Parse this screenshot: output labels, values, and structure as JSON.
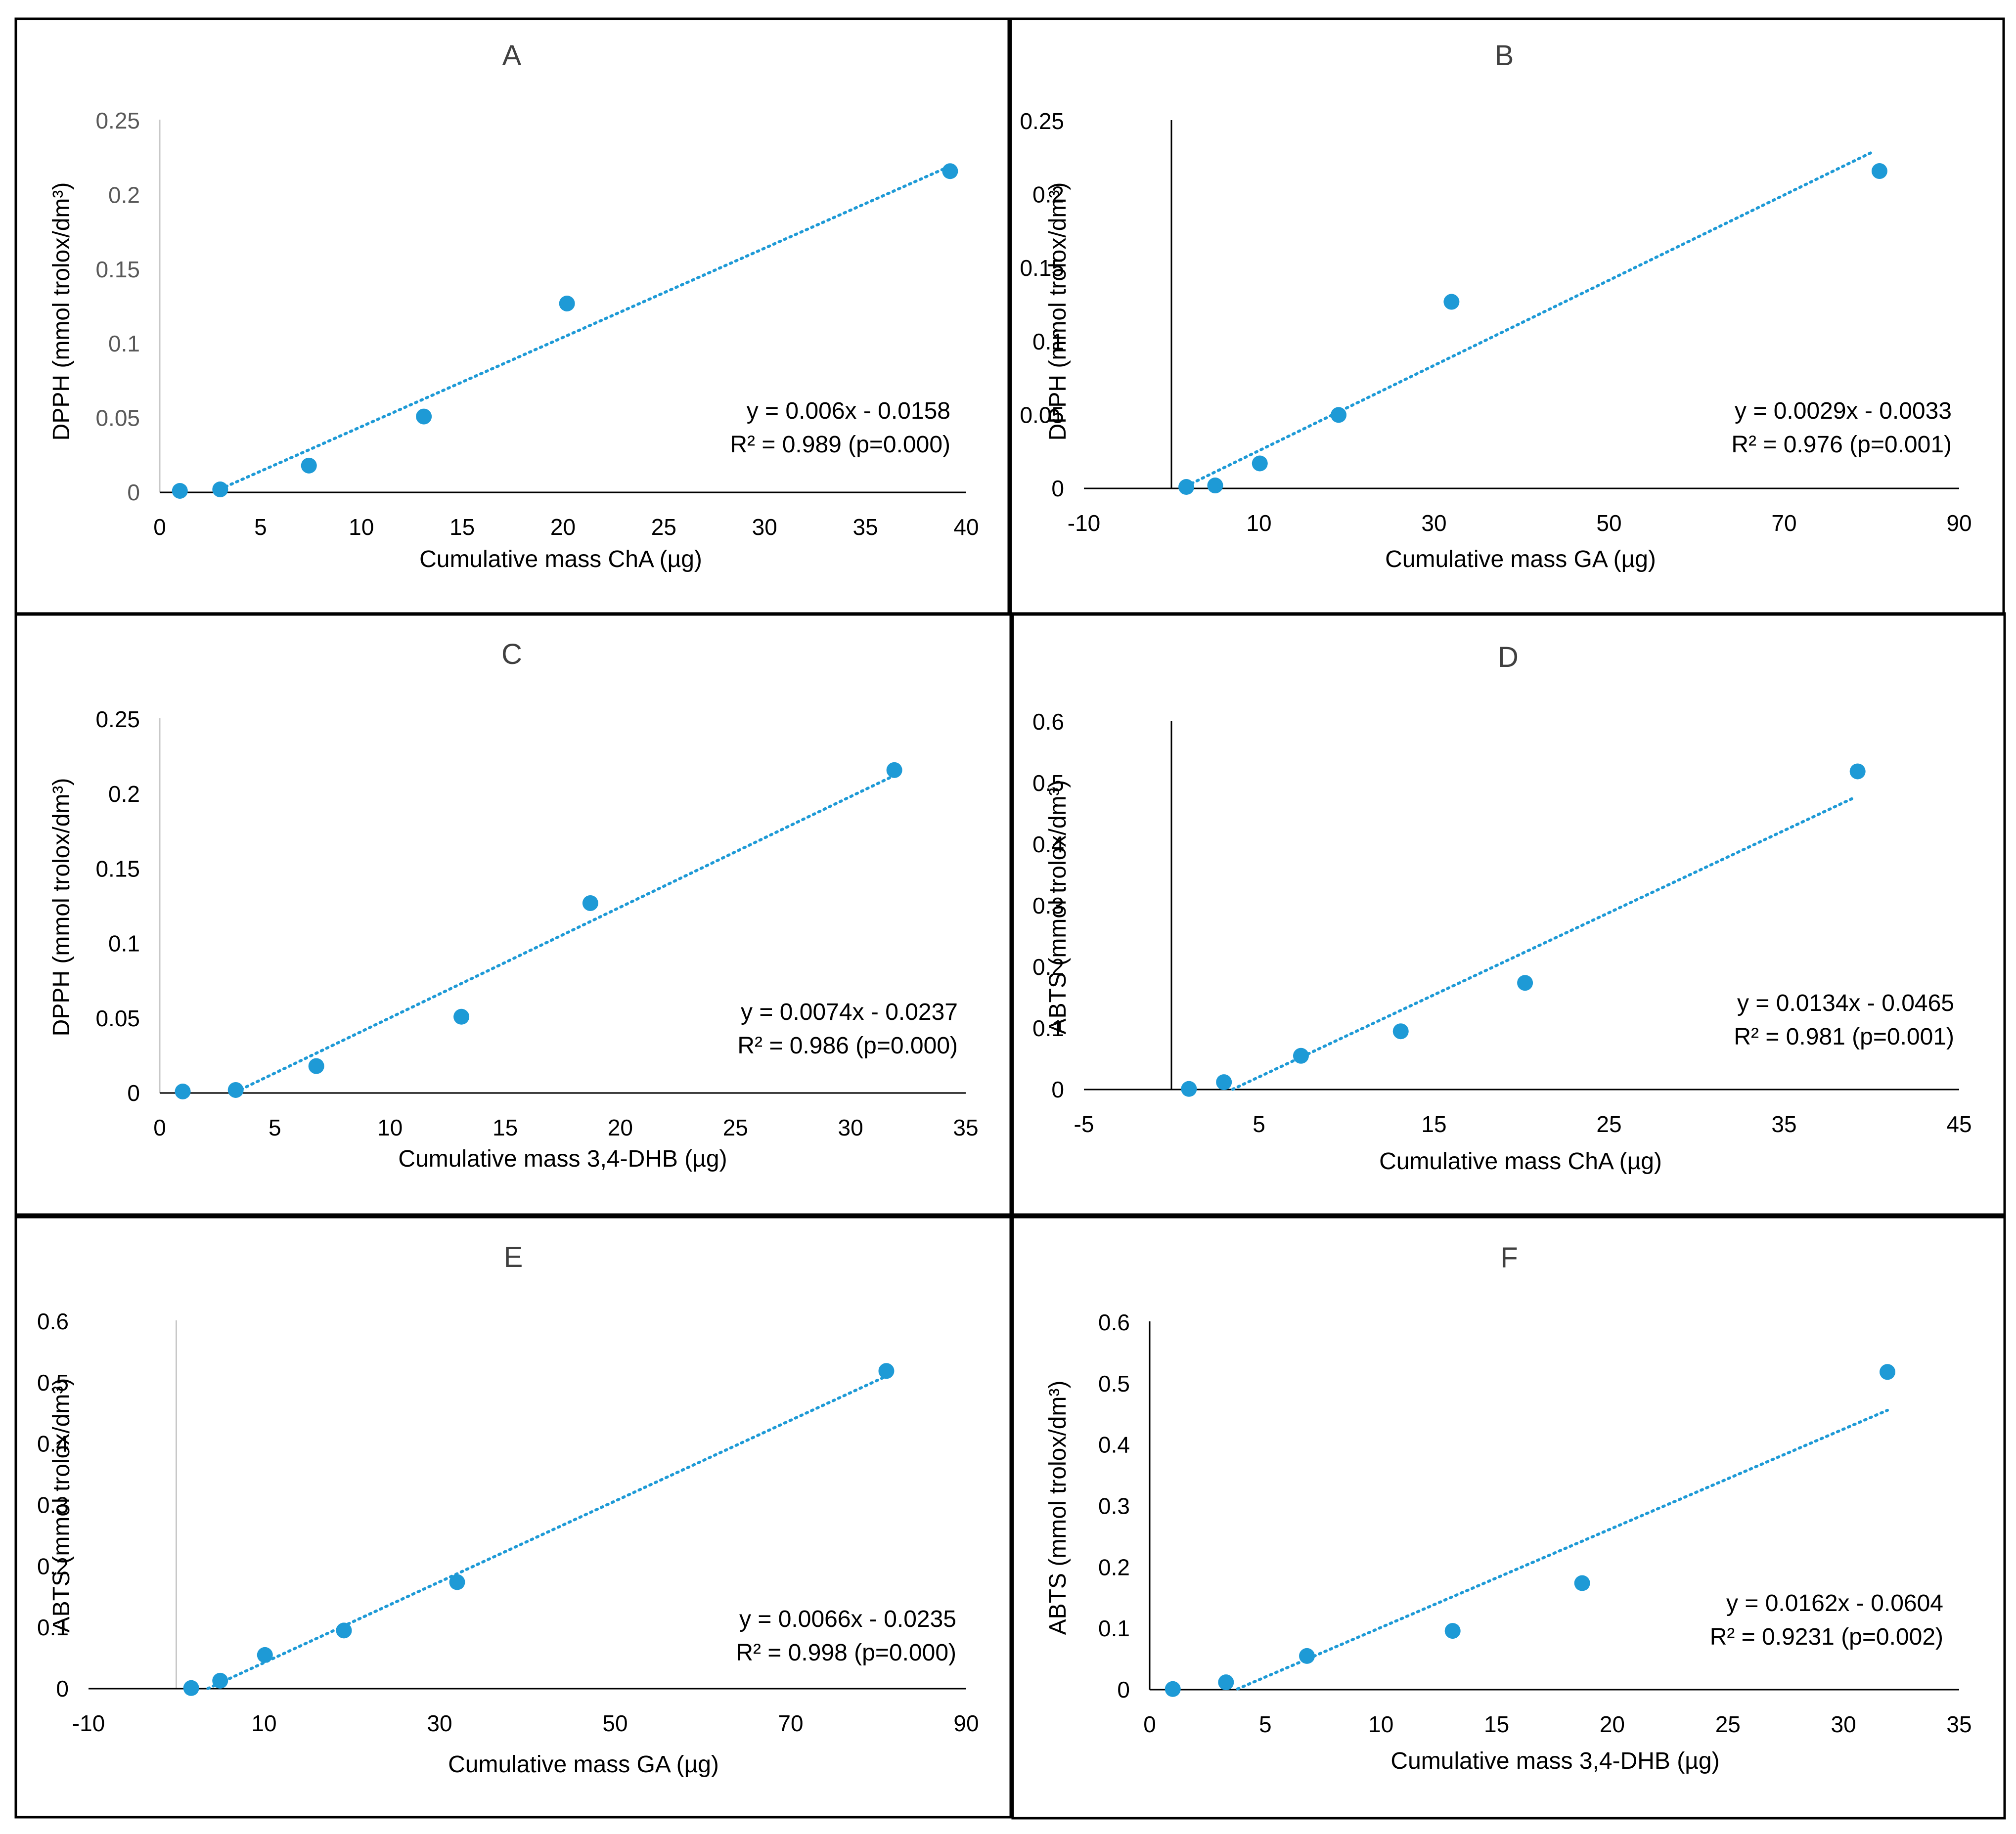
{
  "figure": {
    "panels": [
      "A",
      "B",
      "C",
      "D",
      "E",
      "F"
    ]
  },
  "chart_data": [
    {
      "id": "A",
      "type": "scatter",
      "title": "A",
      "xlabel": "Cumulative mass ChA (µg)",
      "ylabel": "DPPH (mmol trolox/dm³)",
      "xlim": [
        0,
        40
      ],
      "ylim": [
        0,
        0.25
      ],
      "xticks": [
        0,
        5,
        10,
        15,
        20,
        25,
        30,
        35,
        40
      ],
      "xtick_labels": [
        "0",
        "5",
        "10",
        "15",
        "20",
        "25",
        "30",
        "35",
        "40"
      ],
      "yticks": [
        0,
        0.05,
        0.1,
        0.15,
        0.2,
        0.25
      ],
      "ytick_labels": [
        "0",
        "0.05",
        "0.1",
        "0.15",
        "0.2",
        "0.25"
      ],
      "x": [
        1.0,
        3.0,
        7.4,
        13.1,
        20.2,
        39.2
      ],
      "y": [
        0.001,
        0.002,
        0.018,
        0.051,
        0.127,
        0.216
      ],
      "trendline": {
        "slope": 0.006,
        "intercept": -0.0158,
        "x_range": [
          3.0,
          39.2
        ]
      },
      "equation": "y = 0.006x - 0.0158",
      "r2": "R² = 0.989 (p=0.000)"
    },
    {
      "id": "B",
      "type": "scatter",
      "title": "B",
      "xlabel": "Cumulative mass GA (µg)",
      "ylabel": "DPPH (mmol trolox/dm³)",
      "xlim": [
        -10,
        90
      ],
      "ylim": [
        0,
        0.25
      ],
      "xticks": [
        -10,
        10,
        30,
        50,
        70,
        90
      ],
      "xtick_labels": [
        "-10",
        "10",
        "30",
        "50",
        "70",
        "90"
      ],
      "yticks": [
        0,
        0.05,
        0.1,
        0.15,
        0.2,
        0.25
      ],
      "ytick_labels": [
        "0",
        "0.05",
        "0.1",
        "0.15",
        "0.2",
        "0.25"
      ],
      "x": [
        1.7,
        5.0,
        10.1,
        19.1,
        32.0,
        80.9
      ],
      "y": [
        0.001,
        0.002,
        0.017,
        0.05,
        0.127,
        0.216
      ],
      "trendline": {
        "slope": 0.0029,
        "intercept": -0.0033,
        "x_range": [
          1.7,
          80.0
        ]
      },
      "equation": "y = 0.0029x - 0.0033",
      "r2": "R² = 0.976 (p=0.001)"
    },
    {
      "id": "C",
      "type": "scatter",
      "title": "C",
      "xlabel": "Cumulative mass 3,4-DHB (µg)",
      "ylabel": "DPPH (mmol trolox/dm³)",
      "xlim": [
        0,
        35
      ],
      "ylim": [
        0,
        0.25
      ],
      "xticks": [
        0,
        5,
        10,
        15,
        20,
        25,
        30,
        35
      ],
      "xtick_labels": [
        "0",
        "5",
        "10",
        "15",
        "20",
        "25",
        "30",
        "35"
      ],
      "yticks": [
        0,
        0.05,
        0.1,
        0.15,
        0.2,
        0.25
      ],
      "ytick_labels": [
        "0",
        "0.05",
        "0.1",
        "0.15",
        "0.2",
        "0.25"
      ],
      "x": [
        1.0,
        3.3,
        6.8,
        13.1,
        18.7,
        31.9
      ],
      "y": [
        0.001,
        0.002,
        0.018,
        0.051,
        0.127,
        0.216
      ],
      "trendline": {
        "slope": 0.0074,
        "intercept": -0.0237,
        "x_range": [
          3.3,
          31.9
        ]
      },
      "equation": "y = 0.0074x - 0.0237",
      "r2": "R² = 0.986 (p=0.000)"
    },
    {
      "id": "D",
      "type": "scatter",
      "title": "D",
      "xlabel": "Cumulative mass ChA (µg)",
      "ylabel": "ABTS (mmol trolox/dm³)",
      "xlim": [
        -5,
        45
      ],
      "ylim": [
        0,
        0.6
      ],
      "xticks": [
        -5,
        5,
        15,
        25,
        35,
        45
      ],
      "xtick_labels": [
        "-5",
        "5",
        "15",
        "25",
        "35",
        "45"
      ],
      "yticks": [
        0,
        0.1,
        0.2,
        0.3,
        0.4,
        0.5,
        0.6
      ],
      "ytick_labels": [
        "0",
        "0.1",
        "0.2",
        "0.3",
        "0.4",
        "0.5",
        "0.6"
      ],
      "x": [
        1.0,
        3.0,
        7.4,
        13.1,
        20.2,
        39.2
      ],
      "y": [
        0.001,
        0.012,
        0.055,
        0.095,
        0.174,
        0.519
      ],
      "trendline": {
        "slope": 0.0134,
        "intercept": -0.0465,
        "x_range": [
          3.5,
          39.0
        ]
      },
      "equation": "y = 0.0134x - 0.0465",
      "r2": "R² = 0.981 (p=0.001)"
    },
    {
      "id": "E",
      "type": "scatter",
      "title": "E",
      "xlabel": "Cumulative mass GA (µg)",
      "ylabel": "ABTS (mmol trolox/dm³)",
      "xlim": [
        -10,
        90
      ],
      "ylim": [
        0,
        0.6
      ],
      "xticks": [
        -10,
        10,
        30,
        50,
        70,
        90
      ],
      "xtick_labels": [
        "-10",
        "10",
        "30",
        "50",
        "70",
        "90"
      ],
      "yticks": [
        0,
        0.1,
        0.2,
        0.3,
        0.4,
        0.5,
        0.6
      ],
      "ytick_labels": [
        "0",
        "0.1",
        "0.2",
        "0.3",
        "0.4",
        "0.5",
        "0.6"
      ],
      "x": [
        1.7,
        5.0,
        10.1,
        19.1,
        32.0,
        80.9
      ],
      "y": [
        0.001,
        0.013,
        0.055,
        0.095,
        0.174,
        0.519
      ],
      "trendline": {
        "slope": 0.0066,
        "intercept": -0.0235,
        "x_range": [
          3.6,
          80.9
        ]
      },
      "equation": "y = 0.0066x - 0.0235",
      "r2": "R² = 0.998 (p=0.000)"
    },
    {
      "id": "F",
      "type": "scatter",
      "title": "F",
      "xlabel": "Cumulative mass 3,4-DHB (µg)",
      "ylabel": "ABTS (mmol trolox/dm³)",
      "xlim": [
        0,
        35
      ],
      "ylim": [
        0,
        0.6
      ],
      "xticks": [
        0,
        5,
        10,
        15,
        20,
        25,
        30,
        35
      ],
      "xtick_labels": [
        "0",
        "5",
        "10",
        "15",
        "20",
        "25",
        "30",
        "35"
      ],
      "yticks": [
        0,
        0.1,
        0.2,
        0.3,
        0.4,
        0.5,
        0.6
      ],
      "ytick_labels": [
        "0",
        "0.1",
        "0.2",
        "0.3",
        "0.4",
        "0.5",
        "0.6"
      ],
      "x": [
        1.0,
        3.3,
        6.8,
        13.1,
        18.7,
        31.9
      ],
      "y": [
        0.001,
        0.012,
        0.055,
        0.096,
        0.174,
        0.519
      ],
      "trendline": {
        "slope": 0.0162,
        "intercept": -0.0604,
        "x_range": [
          3.8,
          31.9
        ]
      },
      "equation": "y = 0.0162x - 0.0604",
      "r2": "R² = 0.9231 (p=0.002)"
    }
  ]
}
